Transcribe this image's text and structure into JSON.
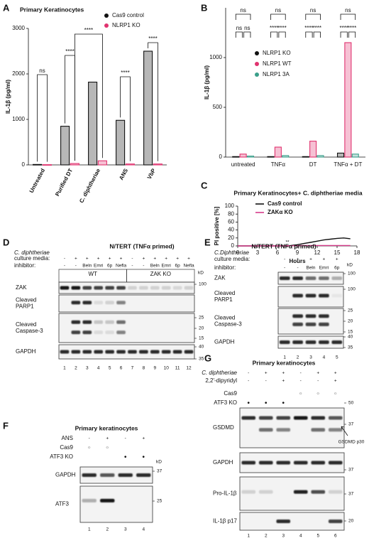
{
  "panel_labels": [
    "A",
    "B",
    "C",
    "D",
    "E",
    "F",
    "G"
  ],
  "chart_data": [
    {
      "type": "bar",
      "title": "Primary Keratinocytes",
      "ylabel": "IL-1β (pg/ml)",
      "categories": [
        "Untreated",
        "Purified DT",
        "C. diphtheriae",
        "ANS",
        "VbP"
      ],
      "series": [
        {
          "name": "Cas9 control",
          "color": "#111111",
          "values": [
            10,
            850,
            1820,
            980,
            2500
          ]
        },
        {
          "name": "NLRP1 KO",
          "color": "#e0336f",
          "values": [
            5,
            30,
            90,
            20,
            20
          ]
        }
      ],
      "ylim": [
        0,
        3000
      ],
      "yticks": [
        0,
        1000,
        2000,
        3000
      ],
      "annotations": [
        "ns",
        "****",
        "****",
        "****",
        "****"
      ]
    },
    {
      "type": "bar",
      "ylabel": "IL-1β (pg/ml)",
      "categories": [
        "untreated",
        "TNFα",
        "DT",
        "TNFα + DT"
      ],
      "series": [
        {
          "name": "NLRP1 KO",
          "color": "#111111",
          "values": [
            5,
            5,
            5,
            40
          ]
        },
        {
          "name": "NLRP1 WT",
          "color": "#e0336f",
          "values": [
            30,
            100,
            160,
            1150
          ]
        },
        {
          "name": "NLRP1 3A",
          "color": "#3a9f8a",
          "values": [
            10,
            15,
            15,
            30
          ]
        }
      ],
      "ylim": [
        0,
        1500
      ],
      "yticks": [
        0,
        500,
        1000
      ],
      "annotations": [
        "ns",
        "ns",
        "ns",
        "ns",
        "****",
        "****",
        "ns",
        "****",
        "****",
        "ns",
        "****",
        "****"
      ]
    },
    {
      "type": "line",
      "title": "Primary Keratinocytes+ C. diphtheriae media",
      "xlabel": "Hours",
      "ylabel": "PI positive [%]",
      "x": [
        0,
        1,
        2,
        3,
        4,
        5,
        6,
        7,
        8,
        9,
        10,
        11,
        12,
        13,
        14,
        15,
        16,
        17
      ],
      "series": [
        {
          "name": "Cas9 control",
          "color": "#111111",
          "values": [
            0,
            0,
            0,
            0,
            0,
            0,
            0,
            0,
            1,
            3,
            6,
            9,
            12,
            15,
            17,
            19,
            20,
            18
          ]
        },
        {
          "name": "ZAKα KO",
          "color": "#d63c8a",
          "values": [
            0,
            0,
            0,
            0,
            0,
            0,
            0,
            0,
            0.5,
            0.5,
            1,
            1,
            1,
            1,
            1,
            1,
            1,
            1
          ]
        }
      ],
      "xlim": [
        0,
        18
      ],
      "xticks": [
        0,
        3,
        6,
        9,
        12,
        15,
        18
      ],
      "ylim": [
        0,
        100
      ],
      "yticks": [
        0,
        20,
        40,
        60,
        80,
        100
      ],
      "annotations": [
        "**"
      ]
    }
  ],
  "blots": [
    {
      "title": "N/TERT (TNFα primed)",
      "conditions": [
        {
          "label": [
            "C. diphtheriae",
            "culture media:"
          ],
          "lanes": [
            "-",
            "+",
            "+",
            "+",
            "+",
            "+",
            "-",
            "+",
            "+",
            "+",
            "+",
            "+"
          ]
        },
        {
          "label": [
            "inhibitor:"
          ],
          "lanes": [
            "-",
            "-",
            "Beln",
            "Emri",
            "6p",
            "Nefla",
            "-",
            "-",
            "Beln",
            "Emri",
            "6p",
            "Nefla"
          ]
        }
      ],
      "groups": [
        "WT",
        "ZAK KO"
      ],
      "kd_unit": "kD",
      "bands": [
        {
          "name": [
            "ZAK"
          ],
          "kd": [
            100
          ]
        },
        {
          "name": [
            "Cleaved",
            "PARP1"
          ],
          "kd": []
        },
        {
          "name": [
            "Cleaved",
            "Caspase-3"
          ],
          "kd": [
            25,
            20,
            15
          ]
        },
        {
          "name": [
            "GAPDH"
          ],
          "kd": [
            40,
            35
          ]
        }
      ],
      "lane_numbers": [
        1,
        2,
        3,
        4,
        5,
        6,
        7,
        8,
        9,
        10,
        11,
        12
      ]
    },
    {
      "title": "N/TERT (TNFα primed)",
      "conditions": [
        {
          "label": [
            "C.Diphtheriae",
            "culture media:"
          ],
          "lanes": [
            "-",
            "+",
            "+",
            "+",
            "+"
          ]
        },
        {
          "label": [
            "inhibitor:"
          ],
          "lanes": [
            "-",
            "-",
            "Beln",
            "Emri",
            "6p"
          ]
        }
      ],
      "kd_unit": "kD",
      "bands": [
        {
          "name": [
            "ZAK"
          ],
          "kd": [
            100
          ]
        },
        {
          "name": [
            "Cleaved",
            "PARP1"
          ],
          "kd": [
            100
          ]
        },
        {
          "name": [
            "Cleaved",
            "Caspase-3"
          ],
          "kd": [
            25,
            20,
            15
          ]
        },
        {
          "name": [
            "GAPDH"
          ],
          "kd": [
            40,
            35
          ]
        }
      ],
      "lane_numbers": [
        1,
        2,
        3,
        4,
        5
      ]
    },
    {
      "title": "Primary keratinocytes",
      "conditions": [
        {
          "label": [
            "ANS"
          ],
          "lanes": [
            "-",
            "+",
            "-",
            "+"
          ]
        },
        {
          "label": [
            "Cas9"
          ],
          "lanes": [
            "○",
            "○",
            null,
            null
          ]
        },
        {
          "label": [
            "ATF3 KO"
          ],
          "lanes": [
            null,
            null,
            "●",
            "●"
          ]
        }
      ],
      "kd_unit": "kD",
      "bands": [
        {
          "name": [
            "GAPDH"
          ],
          "kd": [
            37
          ]
        },
        {
          "name": [
            "ATF3"
          ],
          "kd": [
            25
          ]
        }
      ],
      "lane_numbers": [
        1,
        2,
        3,
        4
      ]
    },
    {
      "title": "Primary keratinocytes",
      "conditions": [
        {
          "label": [
            "C. diphtheriae"
          ],
          "lanes": [
            "-",
            "+",
            "+",
            "-",
            "+",
            "+"
          ]
        },
        {
          "label": [
            "2,2'-dipyridyl"
          ],
          "lanes": [
            "-",
            "-",
            "+",
            "-",
            "-",
            "+"
          ]
        },
        {
          "label": [
            "Cas9"
          ],
          "lanes": [
            null,
            null,
            null,
            "○",
            "○",
            "○"
          ]
        },
        {
          "label": [
            "ATF3 KO"
          ],
          "lanes": [
            "●",
            "●",
            "●",
            null,
            null,
            null
          ]
        }
      ],
      "bands": [
        {
          "name": [
            "GSDMD"
          ],
          "kd": [
            50,
            37
          ]
        },
        {
          "name": [
            "GAPDH"
          ],
          "kd": [
            37
          ]
        },
        {
          "name": [
            "Pro-IL-1β"
          ],
          "kd": [
            37
          ]
        },
        {
          "name": [
            "IL-1β p17"
          ],
          "kd": [
            20
          ]
        }
      ],
      "annotation": "GSDMD p30",
      "lane_numbers": [
        1,
        2,
        3,
        4,
        5,
        6
      ]
    }
  ]
}
